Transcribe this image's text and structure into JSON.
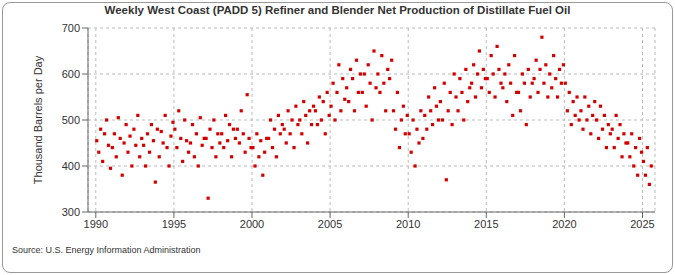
{
  "chart_data": {
    "type": "scatter",
    "title": "Weekly West Coast (PADD 5) Refiner and Blender Net Production of Distillate Fuel Oil",
    "y_label": "Thousand Barrels per Day",
    "annotation": "Source: U.S. Energy Information Administration",
    "color": "#d40000",
    "marker": "square",
    "grid": true,
    "xlim": [
      1989.5,
      2025.8
    ],
    "xticks": [
      1990,
      1995,
      2000,
      2005,
      2010,
      2015,
      2020,
      2025
    ],
    "ylim": [
      300,
      700
    ],
    "yticks": [
      300,
      400,
      500,
      600,
      700
    ],
    "x": [
      1990.06,
      1990.19,
      1990.31,
      1990.44,
      1990.56,
      1990.69,
      1990.81,
      1990.94,
      1991.06,
      1991.19,
      1991.31,
      1991.44,
      1991.56,
      1991.69,
      1991.81,
      1991.94,
      1992.06,
      1992.19,
      1992.31,
      1992.44,
      1992.56,
      1992.69,
      1992.81,
      1992.94,
      1993.06,
      1993.19,
      1993.31,
      1993.44,
      1993.56,
      1993.69,
      1993.81,
      1993.94,
      1994.06,
      1994.19,
      1994.31,
      1994.44,
      1994.56,
      1994.69,
      1994.81,
      1994.94,
      1995.06,
      1995.19,
      1995.31,
      1995.44,
      1995.56,
      1995.69,
      1995.81,
      1995.94,
      1996.06,
      1996.19,
      1996.31,
      1996.44,
      1996.56,
      1996.69,
      1996.81,
      1996.94,
      1997.06,
      1997.19,
      1997.31,
      1997.44,
      1997.56,
      1997.69,
      1997.81,
      1997.94,
      1998.06,
      1998.19,
      1998.31,
      1998.44,
      1998.56,
      1998.69,
      1998.81,
      1998.94,
      1999.06,
      1999.19,
      1999.31,
      1999.44,
      1999.56,
      1999.69,
      1999.81,
      1999.94,
      2000.06,
      2000.19,
      2000.31,
      2000.44,
      2000.56,
      2000.69,
      2000.81,
      2000.94,
      2001.06,
      2001.19,
      2001.31,
      2001.44,
      2001.56,
      2001.69,
      2001.81,
      2001.94,
      2002.06,
      2002.19,
      2002.31,
      2002.44,
      2002.56,
      2002.69,
      2002.81,
      2002.94,
      2003.06,
      2003.19,
      2003.31,
      2003.44,
      2003.56,
      2003.69,
      2003.81,
      2003.94,
      2004.06,
      2004.19,
      2004.31,
      2004.44,
      2004.56,
      2004.69,
      2004.81,
      2004.94,
      2005.06,
      2005.19,
      2005.31,
      2005.44,
      2005.56,
      2005.69,
      2005.81,
      2005.94,
      2006.06,
      2006.19,
      2006.31,
      2006.44,
      2006.56,
      2006.69,
      2006.81,
      2006.94,
      2007.06,
      2007.19,
      2007.31,
      2007.44,
      2007.56,
      2007.69,
      2007.81,
      2007.94,
      2008.06,
      2008.19,
      2008.31,
      2008.44,
      2008.56,
      2008.69,
      2008.81,
      2008.94,
      2009.06,
      2009.19,
      2009.31,
      2009.44,
      2009.56,
      2009.69,
      2009.81,
      2009.94,
      2010.06,
      2010.19,
      2010.31,
      2010.44,
      2010.56,
      2010.69,
      2010.81,
      2010.94,
      2011.06,
      2011.19,
      2011.31,
      2011.44,
      2011.56,
      2011.69,
      2011.81,
      2011.94,
      2012.06,
      2012.19,
      2012.31,
      2012.44,
      2012.56,
      2012.69,
      2012.81,
      2012.94,
      2013.06,
      2013.19,
      2013.31,
      2013.44,
      2013.56,
      2013.69,
      2013.81,
      2013.94,
      2014.06,
      2014.19,
      2014.31,
      2014.44,
      2014.56,
      2014.69,
      2014.81,
      2014.94,
      2015.06,
      2015.19,
      2015.31,
      2015.44,
      2015.56,
      2015.69,
      2015.81,
      2015.94,
      2016.06,
      2016.19,
      2016.31,
      2016.44,
      2016.56,
      2016.69,
      2016.81,
      2016.94,
      2017.06,
      2017.19,
      2017.31,
      2017.44,
      2017.56,
      2017.69,
      2017.81,
      2017.94,
      2018.06,
      2018.19,
      2018.31,
      2018.44,
      2018.56,
      2018.69,
      2018.81,
      2018.94,
      2019.06,
      2019.19,
      2019.31,
      2019.44,
      2019.56,
      2019.69,
      2019.81,
      2019.94,
      2020.06,
      2020.19,
      2020.31,
      2020.44,
      2020.56,
      2020.69,
      2020.81,
      2020.94,
      2021.06,
      2021.19,
      2021.31,
      2021.44,
      2021.56,
      2021.69,
      2021.81,
      2021.94,
      2022.06,
      2022.19,
      2022.31,
      2022.44,
      2022.56,
      2022.69,
      2022.81,
      2022.94,
      2023.06,
      2023.19,
      2023.31,
      2023.44,
      2023.56,
      2023.69,
      2023.81,
      2023.94,
      2024.06,
      2024.19,
      2024.31,
      2024.44,
      2024.56,
      2024.69,
      2024.81,
      2024.94,
      2025.06,
      2025.19,
      2025.31,
      2025.44,
      2025.56
    ],
    "values": [
      455,
      430,
      480,
      410,
      470,
      500,
      445,
      395,
      440,
      470,
      420,
      505,
      460,
      380,
      450,
      490,
      430,
      465,
      400,
      480,
      445,
      510,
      420,
      460,
      445,
      400,
      470,
      430,
      490,
      455,
      365,
      480,
      420,
      475,
      450,
      510,
      440,
      400,
      465,
      495,
      480,
      440,
      520,
      460,
      410,
      500,
      455,
      430,
      450,
      490,
      420,
      470,
      400,
      505,
      445,
      460,
      460,
      330,
      480,
      440,
      500,
      420,
      470,
      450,
      470,
      440,
      510,
      455,
      490,
      420,
      480,
      460,
      480,
      450,
      520,
      470,
      430,
      555,
      460,
      440,
      440,
      400,
      470,
      420,
      455,
      380,
      430,
      460,
      460,
      500,
      440,
      480,
      420,
      510,
      470,
      490,
      480,
      450,
      520,
      470,
      500,
      440,
      530,
      490,
      500,
      470,
      540,
      510,
      450,
      520,
      490,
      530,
      520,
      490,
      550,
      500,
      540,
      470,
      560,
      510,
      530,
      580,
      500,
      560,
      620,
      520,
      590,
      545,
      570,
      540,
      610,
      590,
      520,
      630,
      560,
      600,
      560,
      600,
      530,
      620,
      580,
      500,
      650,
      570,
      600,
      560,
      640,
      580,
      520,
      610,
      590,
      630,
      520,
      480,
      560,
      440,
      500,
      530,
      470,
      510,
      470,
      430,
      500,
      400,
      480,
      450,
      520,
      460,
      510,
      480,
      550,
      520,
      490,
      570,
      530,
      500,
      540,
      500,
      580,
      370,
      520,
      560,
      490,
      600,
      550,
      520,
      590,
      560,
      500,
      610,
      540,
      570,
      580,
      620,
      550,
      600,
      650,
      570,
      610,
      590,
      590,
      560,
      640,
      600,
      550,
      660,
      610,
      580,
      570,
      600,
      540,
      620,
      580,
      510,
      640,
      560,
      560,
      520,
      600,
      580,
      490,
      610,
      550,
      580,
      590,
      630,
      560,
      610,
      680,
      580,
      620,
      550,
      600,
      570,
      640,
      590,
      550,
      610,
      580,
      620,
      580,
      520,
      560,
      490,
      540,
      510,
      550,
      500,
      520,
      480,
      550,
      500,
      530,
      470,
      510,
      540,
      500,
      460,
      530,
      480,
      510,
      440,
      490,
      470,
      480,
      440,
      510,
      460,
      490,
      420,
      470,
      450,
      450,
      420,
      470,
      400,
      440,
      380,
      460,
      430,
      410,
      380,
      440,
      360,
      400
    ]
  }
}
